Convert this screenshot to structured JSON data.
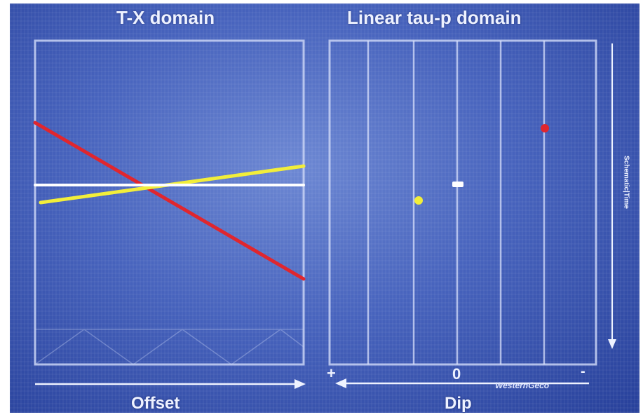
{
  "left_panel": {
    "title": "T-X domain",
    "axis_label": "Offset"
  },
  "right_panel": {
    "title": "Linear tau-p domain",
    "axis_label": "Dip",
    "axis_ticks": {
      "left": "+",
      "center": "0",
      "right": "-"
    },
    "side_label": "Schematic|Time",
    "brand": "WesternGeco"
  },
  "colors": {
    "background": "#4763bd",
    "event_red": "#e0262e",
    "event_yellow": "#f2ee3a",
    "event_white": "#ffffff",
    "frame": "#c9d4f5"
  }
}
